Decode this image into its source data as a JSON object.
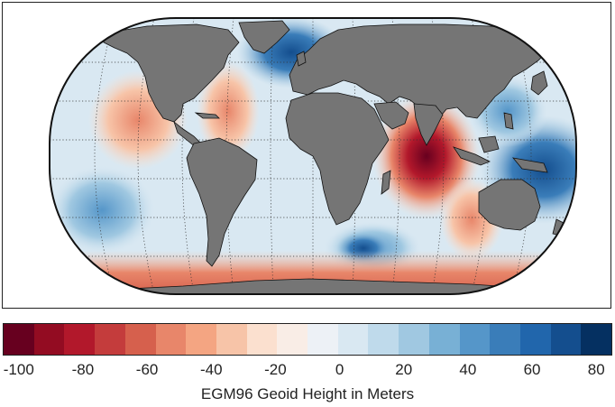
{
  "map": {
    "projection": "robinson-like",
    "land_color": "#757575",
    "graticule": "dotted"
  },
  "colorbar": {
    "label": "EGM96 Geoid Height in Meters",
    "range": [
      -105,
      85
    ],
    "colors": [
      "#67001f",
      "#930c22",
      "#b2182b",
      "#c43c3c",
      "#d6604d",
      "#e8866a",
      "#f4a582",
      "#f7c4a8",
      "#fbe0cf",
      "#f9ede6",
      "#edf1f6",
      "#d9e8f2",
      "#bfdaeb",
      "#a0c8e1",
      "#78b0d5",
      "#5596c9",
      "#3a7db9",
      "#2166ac",
      "#144e8e",
      "#053061"
    ],
    "ticks": [
      {
        "value": -100,
        "label": "-100"
      },
      {
        "value": -80,
        "label": "-80"
      },
      {
        "value": -60,
        "label": "-60"
      },
      {
        "value": -40,
        "label": "-40"
      },
      {
        "value": -20,
        "label": "-20"
      },
      {
        "value": 0,
        "label": "0"
      },
      {
        "value": 20,
        "label": "20"
      },
      {
        "value": 40,
        "label": "40"
      },
      {
        "value": 60,
        "label": "60"
      },
      {
        "value": 80,
        "label": "80"
      }
    ]
  }
}
